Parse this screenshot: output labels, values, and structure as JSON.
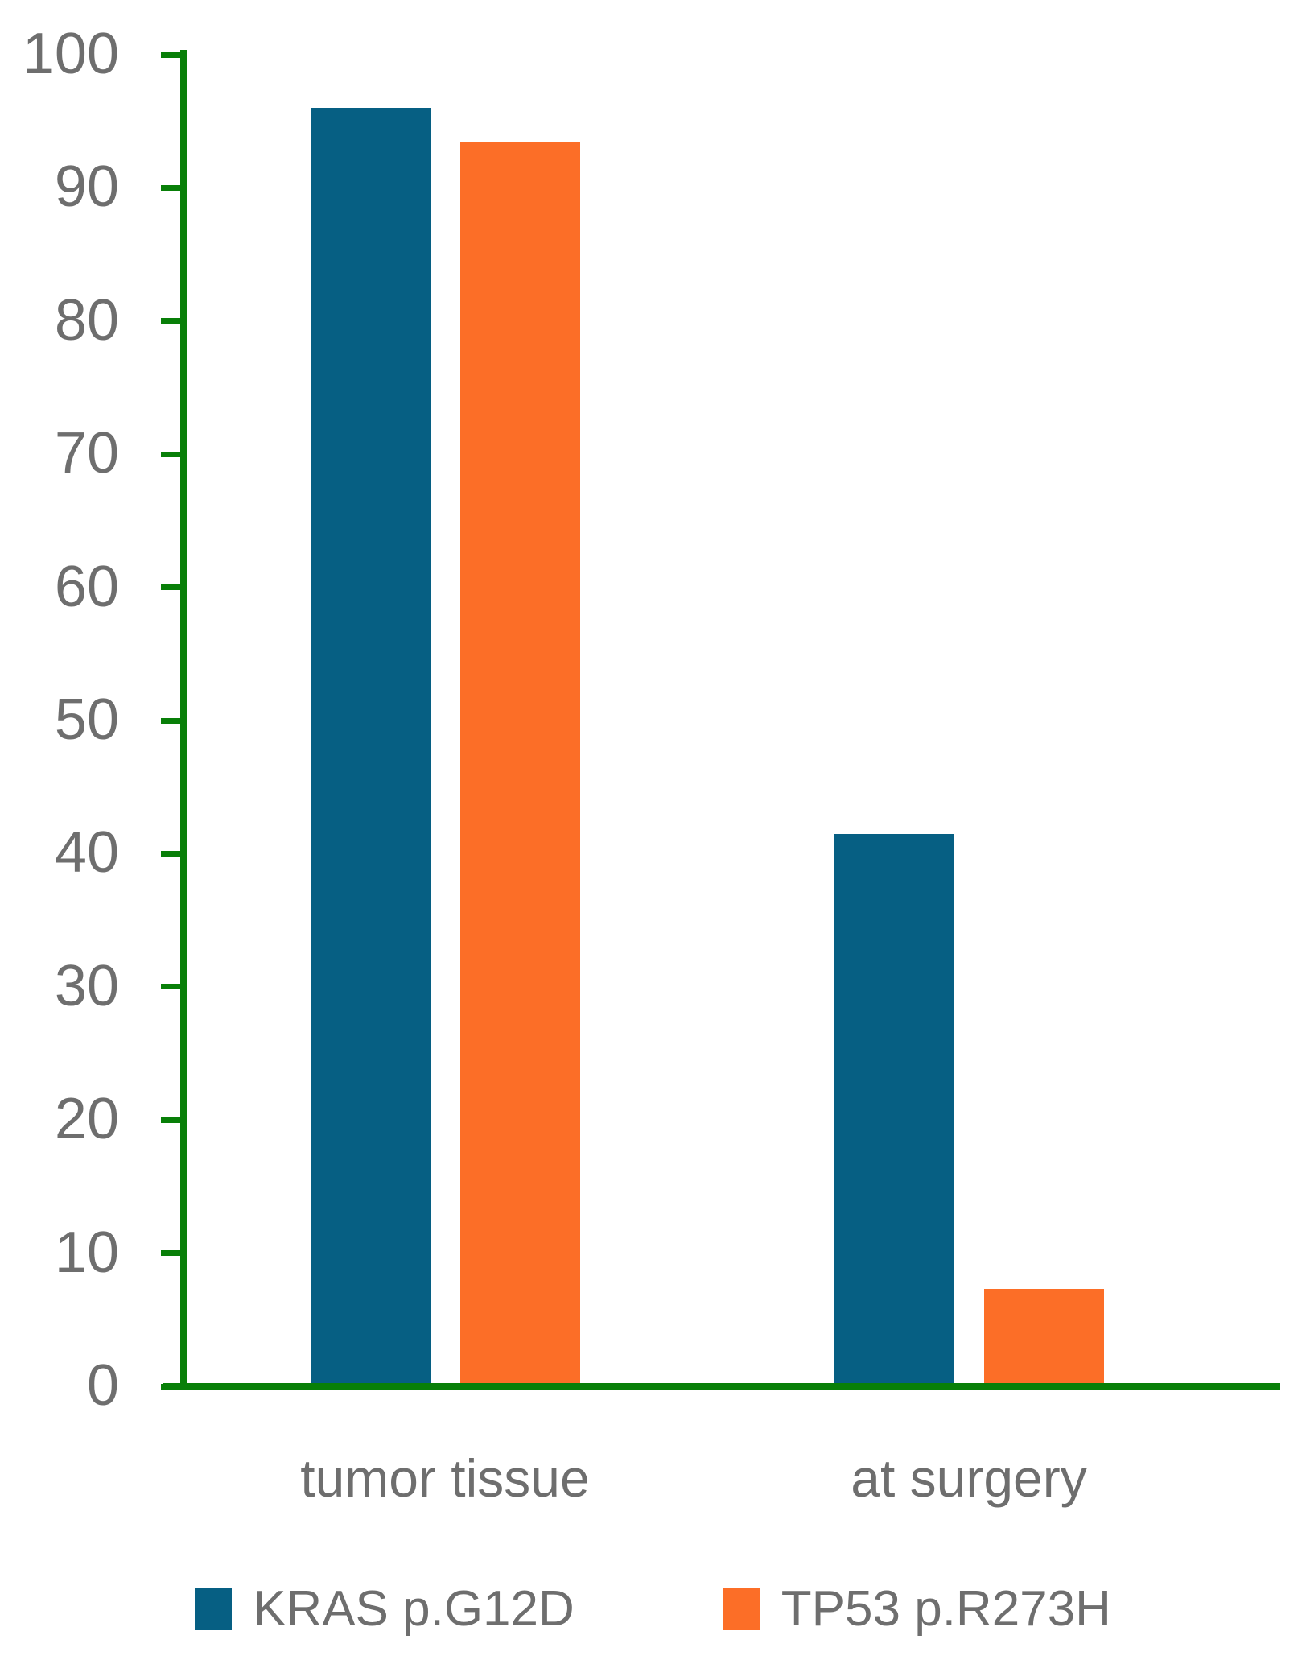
{
  "chart_data": {
    "type": "bar",
    "title": "",
    "xlabel": "",
    "ylabel": "",
    "categories": [
      "tumor tissue",
      "at surgery"
    ],
    "series": [
      {
        "name": "KRAS p.G12D",
        "color": "#065f83",
        "values": [
          96,
          41.5
        ]
      },
      {
        "name": "TP53 p.R273H",
        "color": "#fc6e27",
        "values": [
          93.5,
          7.3
        ]
      }
    ],
    "ylim": [
      0,
      100
    ],
    "yticks": [
      0,
      10,
      20,
      30,
      40,
      50,
      60,
      70,
      80,
      90,
      100
    ],
    "grid": false,
    "legend_position": "bottom",
    "colors": {
      "axis": "#087f08",
      "tick_text": "#6e6e6e",
      "background": "#ffffff"
    }
  }
}
